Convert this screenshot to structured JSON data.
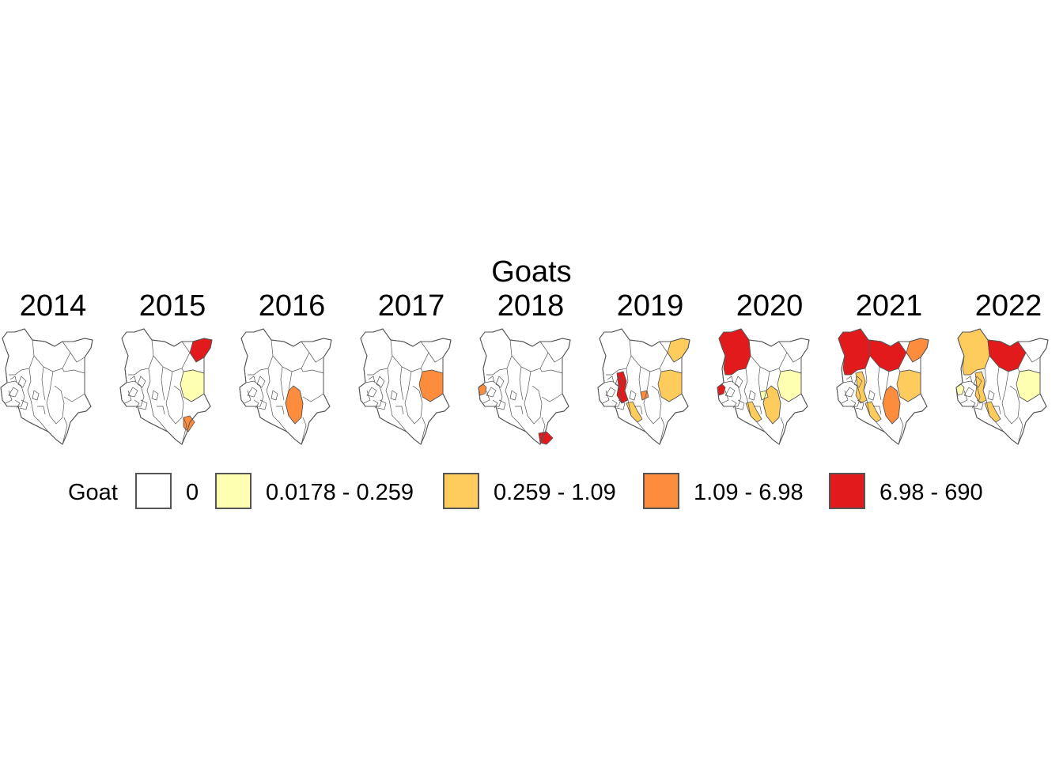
{
  "title": "Goats",
  "legend": {
    "title": "Goat",
    "items": [
      {
        "label": "0",
        "color": "#ffffff"
      },
      {
        "label": "0.0178 - 0.259",
        "color": "#ffffb2"
      },
      {
        "label": "0.259 - 1.09",
        "color": "#fecc5c"
      },
      {
        "label": "1.09 - 6.98",
        "color": "#fd8d3c"
      },
      {
        "label": "6.98 - 690",
        "color": "#e31a1c"
      }
    ]
  },
  "panels": [
    {
      "year": "2014",
      "highlights": []
    },
    {
      "year": "2015",
      "highlights": [
        {
          "region": "north-east",
          "cls": 4
        },
        {
          "region": "east-central",
          "cls": 1
        },
        {
          "region": "coast-south",
          "cls": 3
        }
      ]
    },
    {
      "year": "2016",
      "highlights": [
        {
          "region": "south-central",
          "cls": 3
        }
      ]
    },
    {
      "year": "2017",
      "highlights": [
        {
          "region": "east-central",
          "cls": 3
        }
      ]
    },
    {
      "year": "2018",
      "highlights": [
        {
          "region": "west",
          "cls": 3
        },
        {
          "region": "coast-tip",
          "cls": 4
        }
      ]
    },
    {
      "year": "2019",
      "highlights": [
        {
          "region": "north-east",
          "cls": 2
        },
        {
          "region": "east-central",
          "cls": 2
        },
        {
          "region": "rift-central",
          "cls": 4
        },
        {
          "region": "central-small",
          "cls": 3
        },
        {
          "region": "south-west",
          "cls": 2
        }
      ]
    },
    {
      "year": "2020",
      "highlights": [
        {
          "region": "north-west",
          "cls": 4
        },
        {
          "region": "west",
          "cls": 4
        },
        {
          "region": "east-central",
          "cls": 1
        },
        {
          "region": "south-central",
          "cls": 2
        },
        {
          "region": "south-west",
          "cls": 2
        },
        {
          "region": "central-small",
          "cls": 1
        }
      ]
    },
    {
      "year": "2021",
      "highlights": [
        {
          "region": "north-west",
          "cls": 4
        },
        {
          "region": "north-central",
          "cls": 4
        },
        {
          "region": "north-east",
          "cls": 3
        },
        {
          "region": "east-central",
          "cls": 2
        },
        {
          "region": "south-central",
          "cls": 3
        },
        {
          "region": "rift-central",
          "cls": 2
        },
        {
          "region": "south-west",
          "cls": 2
        }
      ]
    },
    {
      "year": "2022",
      "highlights": [
        {
          "region": "north-west",
          "cls": 2
        },
        {
          "region": "north-central",
          "cls": 4
        },
        {
          "region": "east-central",
          "cls": 1
        },
        {
          "region": "rift-central",
          "cls": 2
        },
        {
          "region": "south-west",
          "cls": 2
        },
        {
          "region": "west",
          "cls": 1
        }
      ]
    }
  ]
}
